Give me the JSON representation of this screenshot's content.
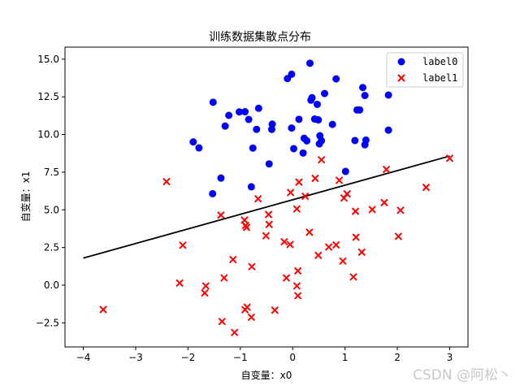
{
  "chart_data": {
    "type": "scatter",
    "title": "训练数据集散点分布",
    "xlabel": "自变量：x0",
    "ylabel": "自变量：x1",
    "xlim": [
      -4.35,
      3.35
    ],
    "ylim": [
      -4.1,
      15.8
    ],
    "xticks": [
      -4,
      -3,
      -2,
      -1,
      0,
      1,
      2,
      3
    ],
    "yticks": [
      -2.5,
      0.0,
      2.5,
      5.0,
      7.5,
      10.0,
      12.5,
      15.0
    ],
    "xtick_labels": [
      "−4",
      "−3",
      "−2",
      "−1",
      "0",
      "1",
      "2",
      "3"
    ],
    "ytick_labels": [
      "−2.5",
      "0.0",
      "2.5",
      "5.0",
      "7.5",
      "10.0",
      "12.5",
      "15.0"
    ],
    "grid": false,
    "legend_position": "top-right",
    "series": [
      {
        "name": "label0",
        "marker": "circle",
        "color": "#0000ff",
        "points": [
          [
            -1.52,
            12.14
          ],
          [
            -1.02,
            11.5
          ],
          [
            -0.91,
            11.51
          ],
          [
            -0.65,
            11.74
          ],
          [
            -1.22,
            11.27
          ],
          [
            -1.29,
            10.56
          ],
          [
            -0.84,
            11.0
          ],
          [
            -0.69,
            10.34
          ],
          [
            -0.4,
            10.34
          ],
          [
            -0.39,
            10.69
          ],
          [
            -0.1,
            13.71
          ],
          [
            -0.02,
            14.0
          ],
          [
            0.33,
            14.73
          ],
          [
            0.35,
            12.28
          ],
          [
            0.37,
            12.44
          ],
          [
            0.47,
            12.0
          ],
          [
            0.61,
            12.72
          ],
          [
            0.83,
            13.69
          ],
          [
            1.34,
            13.12
          ],
          [
            1.38,
            12.59
          ],
          [
            1.28,
            11.63
          ],
          [
            1.23,
            11.63
          ],
          [
            -0.02,
            10.43
          ],
          [
            0.12,
            11.01
          ],
          [
            0.42,
            11.03
          ],
          [
            0.49,
            10.97
          ],
          [
            0.76,
            10.67
          ],
          [
            0.52,
            9.92
          ],
          [
            0.51,
            9.38
          ],
          [
            0.55,
            9.59
          ],
          [
            0.22,
            9.75
          ],
          [
            0.27,
            9.58
          ],
          [
            0.02,
            9.06
          ],
          [
            0.2,
            8.77
          ],
          [
            1.19,
            9.6
          ],
          [
            1.38,
            9.32
          ],
          [
            1.4,
            9.63
          ],
          [
            1.83,
            10.29
          ],
          [
            1.83,
            12.62
          ],
          [
            -1.9,
            9.51
          ],
          [
            -1.79,
            9.11
          ],
          [
            -0.76,
            9.1
          ],
          [
            -1.37,
            7.11
          ],
          [
            -0.45,
            8.05
          ],
          [
            -0.79,
            6.53
          ],
          [
            -1.53,
            6.07
          ],
          [
            1.01,
            7.55
          ]
        ]
      },
      {
        "name": "label1",
        "marker": "x",
        "color": "#ff0000",
        "points": [
          [
            -3.62,
            -1.62
          ],
          [
            -2.41,
            6.87
          ],
          [
            -2.1,
            2.65
          ],
          [
            -2.16,
            0.14
          ],
          [
            -1.66,
            -0.05
          ],
          [
            -1.68,
            -0.52
          ],
          [
            -1.37,
            4.65
          ],
          [
            -1.31,
            0.48
          ],
          [
            -1.14,
            1.7
          ],
          [
            -0.92,
            4.32
          ],
          [
            -0.9,
            3.96
          ],
          [
            -0.88,
            3.83
          ],
          [
            -0.66,
            5.73
          ],
          [
            -0.51,
            3.28
          ],
          [
            -0.45,
            4.03
          ],
          [
            -0.46,
            4.69
          ],
          [
            -0.16,
            2.88
          ],
          [
            -0.05,
            2.7
          ],
          [
            -0.04,
            6.15
          ],
          [
            0.08,
            5.06
          ],
          [
            0.12,
            6.84
          ],
          [
            0.24,
            5.9
          ],
          [
            0.32,
            3.51
          ],
          [
            0.43,
            7.09
          ],
          [
            0.55,
            8.32
          ],
          [
            0.49,
            1.98
          ],
          [
            0.69,
            2.53
          ],
          [
            0.83,
            2.67
          ],
          [
            0.89,
            6.96
          ],
          [
            0.98,
            5.78
          ],
          [
            1.04,
            6.06
          ],
          [
            0.96,
            1.6
          ],
          [
            1.16,
            0.55
          ],
          [
            1.2,
            4.9
          ],
          [
            1.21,
            3.18
          ],
          [
            1.32,
            2.19
          ],
          [
            1.52,
            5.02
          ],
          [
            1.75,
            5.48
          ],
          [
            1.79,
            7.68
          ],
          [
            2.02,
            3.24
          ],
          [
            2.06,
            4.97
          ],
          [
            2.55,
            6.49
          ],
          [
            3.0,
            8.42
          ],
          [
            0.08,
            -0.05
          ],
          [
            0.1,
            -0.7
          ],
          [
            -0.12,
            0.48
          ],
          [
            -0.78,
            1.23
          ],
          [
            -0.79,
            -2.13
          ],
          [
            -0.91,
            -1.63
          ],
          [
            -0.87,
            -1.46
          ],
          [
            -0.34,
            -1.66
          ],
          [
            -1.35,
            -2.41
          ],
          [
            -1.11,
            -3.14
          ],
          [
            0.1,
            0.95
          ]
        ]
      }
    ],
    "decision_line": {
      "color": "#000000",
      "points": [
        [
          -4.0,
          1.8
        ],
        [
          3.0,
          8.57
        ]
      ]
    }
  },
  "watermark": "CSDN @阿松丶"
}
